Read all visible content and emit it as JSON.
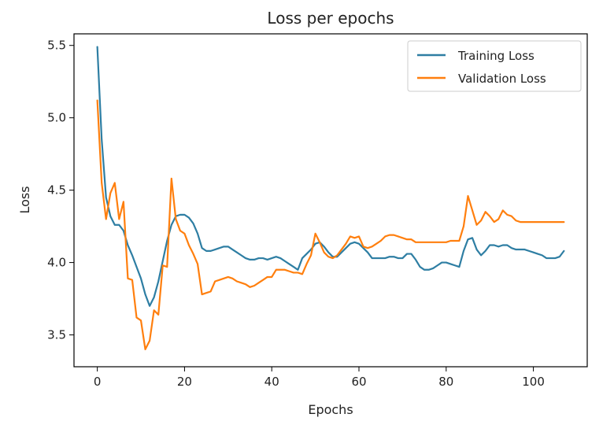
{
  "chart_data": {
    "type": "line",
    "title": "Loss per epochs",
    "xlabel": "Epochs",
    "ylabel": "Loss",
    "xlim": [
      -5.35,
      112.35
    ],
    "ylim": [
      3.28,
      5.58
    ],
    "xticks": [
      0,
      20,
      40,
      60,
      80,
      100
    ],
    "yticks": [
      3.5,
      4.0,
      4.5,
      5.0,
      5.5
    ],
    "xtick_labels": [
      "0",
      "20",
      "40",
      "60",
      "80",
      "100"
    ],
    "ytick_labels": [
      "3.5",
      "4.0",
      "4.5",
      "5.0",
      "5.5"
    ],
    "grid": false,
    "legend_position": "top-right",
    "series": [
      {
        "name": "Training Loss",
        "color": "#2e7ea3",
        "x": [
          0,
          1,
          2,
          3,
          4,
          5,
          6,
          7,
          8,
          9,
          10,
          11,
          12,
          13,
          14,
          15,
          16,
          17,
          18,
          19,
          20,
          21,
          22,
          23,
          24,
          25,
          26,
          27,
          28,
          29,
          30,
          31,
          32,
          33,
          34,
          35,
          36,
          37,
          38,
          39,
          40,
          41,
          42,
          43,
          44,
          45,
          46,
          47,
          48,
          49,
          50,
          51,
          52,
          53,
          54,
          55,
          56,
          57,
          58,
          59,
          60,
          61,
          62,
          63,
          64,
          65,
          66,
          67,
          68,
          69,
          70,
          71,
          72,
          73,
          74,
          75,
          76,
          77,
          78,
          79,
          80,
          81,
          82,
          83,
          84,
          85,
          86,
          87,
          88,
          89,
          90,
          91,
          92,
          93,
          94,
          95,
          96,
          97,
          98,
          99,
          100,
          101,
          102,
          103,
          104,
          105,
          106,
          107
        ],
        "y": [
          5.49,
          4.85,
          4.45,
          4.32,
          4.26,
          4.26,
          4.22,
          4.12,
          4.05,
          3.97,
          3.89,
          3.78,
          3.7,
          3.76,
          3.87,
          4.01,
          4.15,
          4.26,
          4.32,
          4.33,
          4.33,
          4.31,
          4.27,
          4.2,
          4.1,
          4.08,
          4.08,
          4.09,
          4.1,
          4.11,
          4.11,
          4.09,
          4.07,
          4.05,
          4.03,
          4.02,
          4.02,
          4.03,
          4.03,
          4.02,
          4.03,
          4.04,
          4.03,
          4.01,
          3.99,
          3.97,
          3.95,
          4.03,
          4.06,
          4.09,
          4.13,
          4.14,
          4.11,
          4.07,
          4.04,
          4.04,
          4.07,
          4.1,
          4.13,
          4.14,
          4.13,
          4.1,
          4.07,
          4.03,
          4.03,
          4.03,
          4.03,
          4.04,
          4.04,
          4.03,
          4.03,
          4.06,
          4.06,
          4.02,
          3.97,
          3.95,
          3.95,
          3.96,
          3.98,
          4.0,
          4.0,
          3.99,
          3.98,
          3.97,
          4.08,
          4.16,
          4.17,
          4.09,
          4.05,
          4.08,
          4.12,
          4.12,
          4.11,
          4.12,
          4.12,
          4.1,
          4.09,
          4.09,
          4.09,
          4.08,
          4.07,
          4.06,
          4.05,
          4.03,
          4.03,
          4.03,
          4.04,
          4.08
        ]
      },
      {
        "name": "Validation Loss",
        "color": "#ff7f0e",
        "x": [
          0,
          1,
          2,
          3,
          4,
          5,
          6,
          7,
          8,
          9,
          10,
          11,
          12,
          13,
          14,
          15,
          16,
          17,
          18,
          19,
          20,
          21,
          22,
          23,
          24,
          25,
          26,
          27,
          28,
          29,
          30,
          31,
          32,
          33,
          34,
          35,
          36,
          37,
          38,
          39,
          40,
          41,
          42,
          43,
          44,
          45,
          46,
          47,
          48,
          49,
          50,
          51,
          52,
          53,
          54,
          55,
          56,
          57,
          58,
          59,
          60,
          61,
          62,
          63,
          64,
          65,
          66,
          67,
          68,
          69,
          70,
          71,
          72,
          73,
          74,
          75,
          76,
          77,
          78,
          79,
          80,
          81,
          82,
          83,
          84,
          85,
          86,
          87,
          88,
          89,
          90,
          91,
          92,
          93,
          94,
          95,
          96,
          97,
          98,
          99,
          100,
          101,
          102,
          103,
          104,
          105,
          106,
          107
        ],
        "y": [
          5.12,
          4.55,
          4.3,
          4.48,
          4.55,
          4.3,
          4.42,
          3.89,
          3.88,
          3.62,
          3.6,
          3.4,
          3.46,
          3.67,
          3.64,
          3.98,
          3.97,
          4.58,
          4.3,
          4.22,
          4.2,
          4.12,
          4.06,
          3.99,
          3.78,
          3.79,
          3.8,
          3.87,
          3.88,
          3.89,
          3.9,
          3.89,
          3.87,
          3.86,
          3.85,
          3.83,
          3.84,
          3.86,
          3.88,
          3.9,
          3.9,
          3.95,
          3.95,
          3.95,
          3.94,
          3.93,
          3.93,
          3.92,
          3.99,
          4.05,
          4.2,
          4.14,
          4.07,
          4.04,
          4.03,
          4.05,
          4.09,
          4.13,
          4.18,
          4.17,
          4.18,
          4.11,
          4.1,
          4.11,
          4.13,
          4.15,
          4.18,
          4.19,
          4.19,
          4.18,
          4.17,
          4.16,
          4.16,
          4.14,
          4.14,
          4.14,
          4.14,
          4.14,
          4.14,
          4.14,
          4.14,
          4.15,
          4.15,
          4.15,
          4.25,
          4.46,
          4.36,
          4.26,
          4.29,
          4.35,
          4.32,
          4.28,
          4.3,
          4.36,
          4.33,
          4.32,
          4.29,
          4.28,
          4.28,
          4.28,
          4.28,
          4.28,
          4.28,
          4.28,
          4.28,
          4.28,
          4.28,
          4.28
        ]
      }
    ]
  }
}
